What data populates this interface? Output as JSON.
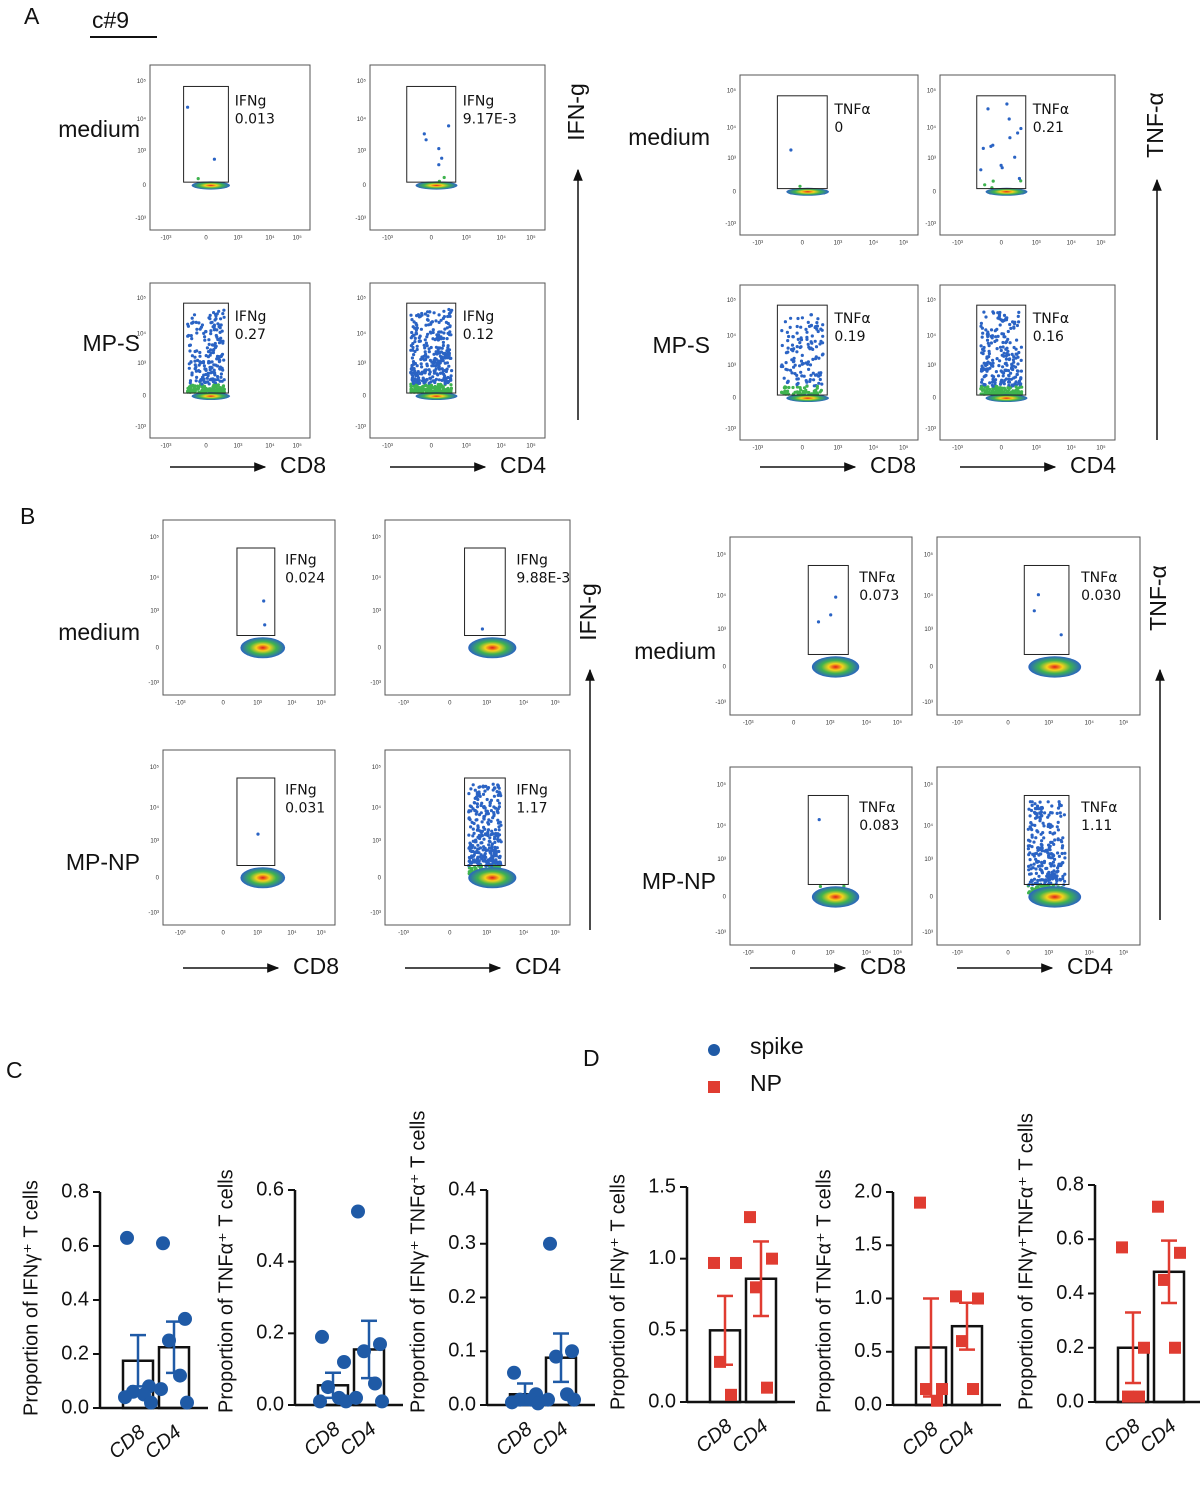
{
  "panels": {
    "A": {
      "label": "A",
      "sample": "c#9",
      "groups": [
        {
          "readout": "IFN-g",
          "columns": [
            "CD8",
            "CD4"
          ],
          "rows": [
            {
              "label": "medium",
              "gates": [
                {
                  "name": "IFNg",
                  "value": "0.013"
                },
                {
                  "name": "IFNg",
                  "value": "9.17E-3"
                }
              ]
            },
            {
              "label": "MP-S",
              "gates": [
                {
                  "name": "IFNg",
                  "value": "0.27"
                },
                {
                  "name": "IFNg",
                  "value": "0.12"
                }
              ]
            }
          ]
        },
        {
          "readout": "TNF-α",
          "columns": [
            "CD8",
            "CD4"
          ],
          "rows": [
            {
              "label": "medium",
              "gates": [
                {
                  "name": "TNFα",
                  "value": "0"
                },
                {
                  "name": "TNFα",
                  "value": "0.21"
                }
              ]
            },
            {
              "label": "MP-S",
              "gates": [
                {
                  "name": "TNFα",
                  "value": "0.19"
                },
                {
                  "name": "TNFα",
                  "value": "0.16"
                }
              ]
            }
          ]
        }
      ]
    },
    "B": {
      "label": "B",
      "groups": [
        {
          "readout": "IFN-g",
          "columns": [
            "CD8",
            "CD4"
          ],
          "rows": [
            {
              "label": "medium",
              "gates": [
                {
                  "name": "IFNg",
                  "value": "0.024"
                },
                {
                  "name": "IFNg",
                  "value": "9.88E-3"
                }
              ]
            },
            {
              "label": "MP-NP",
              "gates": [
                {
                  "name": "IFNg",
                  "value": "0.031"
                },
                {
                  "name": "IFNg",
                  "value": "1.17"
                }
              ]
            }
          ]
        },
        {
          "readout": "TNF-α",
          "columns": [
            "CD8",
            "CD4"
          ],
          "rows": [
            {
              "label": "medium",
              "gates": [
                {
                  "name": "TNFα",
                  "value": "0.073"
                },
                {
                  "name": "TNFα",
                  "value": "0.030"
                }
              ]
            },
            {
              "label": "MP-NP",
              "gates": [
                {
                  "name": "TNFα",
                  "value": "0.083"
                },
                {
                  "name": "TNFα",
                  "value": "1.11"
                }
              ]
            }
          ]
        }
      ]
    },
    "C": {
      "label": "C"
    },
    "D": {
      "label": "D"
    }
  },
  "flow_ticks": [
    "-10³",
    "0",
    "10³",
    "10⁴",
    "10⁵"
  ],
  "legend": [
    {
      "name": "spike",
      "color": "#1f5aa6",
      "marker": "circle"
    },
    {
      "name": "NP",
      "color": "#e03c31",
      "marker": "square"
    }
  ],
  "chart_data": [
    {
      "type": "bar",
      "ylabel": "Proportion of IFNγ⁺ T cells",
      "categories": [
        "CD8",
        "CD4"
      ],
      "values": [
        0.175,
        0.225
      ],
      "errors": [
        0.095,
        0.095
      ],
      "points": [
        [
          0.63,
          0.08,
          0.06,
          0.05,
          0.04,
          0.02
        ],
        [
          0.61,
          0.33,
          0.25,
          0.12,
          0.07,
          0.02
        ]
      ],
      "color": "#1f5aa6",
      "marker": "circle",
      "ylim": [
        0,
        0.8
      ],
      "yticks": [
        {
          "value": 0,
          "label": "0.0"
        },
        {
          "value": 0.2,
          "label": "0.2"
        },
        {
          "value": 0.4,
          "label": "0.4"
        },
        {
          "value": 0.6,
          "label": "0.6"
        },
        {
          "value": 0.8,
          "label": "0.8"
        }
      ]
    },
    {
      "type": "bar",
      "ylabel": "Proportion of TNFα⁺ T cells",
      "categories": [
        "CD8",
        "CD4"
      ],
      "values": [
        0.055,
        0.155
      ],
      "errors": [
        0.035,
        0.08
      ],
      "points": [
        [
          0.19,
          0.12,
          0.05,
          0.02,
          0.01,
          0.01
        ],
        [
          0.54,
          0.17,
          0.15,
          0.06,
          0.02,
          0.01
        ]
      ],
      "color": "#1f5aa6",
      "marker": "circle",
      "ylim": [
        0,
        0.6
      ],
      "yticks": [
        {
          "value": 0,
          "label": "0.0"
        },
        {
          "value": 0.2,
          "label": "0.2"
        },
        {
          "value": 0.4,
          "label": "0.4"
        },
        {
          "value": 0.6,
          "label": "0.6"
        }
      ]
    },
    {
      "type": "bar",
      "ylabel": "Proportion of IFNγ⁺ TNFα⁺ T cells",
      "categories": [
        "CD8",
        "CD4"
      ],
      "values": [
        0.02,
        0.088
      ],
      "errors": [
        0.02,
        0.045
      ],
      "points": [
        [
          0.06,
          0.02,
          0.01,
          0.01,
          0.005,
          0.003
        ],
        [
          0.3,
          0.1,
          0.09,
          0.02,
          0.01,
          0.01
        ]
      ],
      "color": "#1f5aa6",
      "marker": "circle",
      "ylim": [
        0,
        0.4
      ],
      "yticks": [
        {
          "value": 0,
          "label": "0.0"
        },
        {
          "value": 0.1,
          "label": "0.1"
        },
        {
          "value": 0.2,
          "label": "0.2"
        },
        {
          "value": 0.3,
          "label": "0.3"
        },
        {
          "value": 0.4,
          "label": "0.4"
        }
      ]
    },
    {
      "type": "bar",
      "ylabel": "Proportion of IFNγ⁺ T cells",
      "categories": [
        "CD8",
        "CD4"
      ],
      "values": [
        0.5,
        0.86
      ],
      "errors": [
        0.24,
        0.26
      ],
      "points": [
        [
          0.97,
          0.97,
          0.28,
          0.05
        ],
        [
          1.29,
          1.0,
          0.8,
          0.1
        ]
      ],
      "color": "#e03c31",
      "marker": "square",
      "ylim": [
        0,
        1.5
      ],
      "yticks": [
        {
          "value": 0,
          "label": "0.0"
        },
        {
          "value": 0.5,
          "label": "0.5"
        },
        {
          "value": 1,
          "label": "1.0"
        },
        {
          "value": 1.5,
          "label": "1.5"
        }
      ]
    },
    {
      "type": "bar",
      "ylabel": "Proportion of TNFα⁺ T cells",
      "categories": [
        "CD8",
        "CD4"
      ],
      "values": [
        0.54,
        0.74
      ],
      "errors": [
        0.46,
        0.22
      ],
      "points": [
        [
          1.9,
          0.15,
          0.15,
          0.04
        ],
        [
          1.02,
          1.0,
          0.6,
          0.15
        ]
      ],
      "color": "#e03c31",
      "marker": "square",
      "ylim": [
        0,
        2
      ],
      "yticks": [
        {
          "value": 0,
          "label": "0.0"
        },
        {
          "value": 0.5,
          "label": "0.5"
        },
        {
          "value": 1,
          "label": "1.0"
        },
        {
          "value": 1.5,
          "label": "1.5"
        },
        {
          "value": 2,
          "label": "2.0"
        }
      ]
    },
    {
      "type": "bar",
      "ylabel": "Proportion of IFNγ⁺TNFα⁺ T cells",
      "categories": [
        "CD8",
        "CD4"
      ],
      "values": [
        0.2,
        0.48
      ],
      "errors": [
        0.13,
        0.115
      ],
      "points": [
        [
          0.57,
          0.2,
          0.02,
          0.02
        ],
        [
          0.72,
          0.55,
          0.45,
          0.2
        ]
      ],
      "color": "#e03c31",
      "marker": "square",
      "ylim": [
        0,
        0.8
      ],
      "yticks": [
        {
          "value": 0,
          "label": "0.0"
        },
        {
          "value": 0.2,
          "label": "0.2"
        },
        {
          "value": 0.4,
          "label": "0.4"
        },
        {
          "value": 0.6,
          "label": "0.6"
        },
        {
          "value": 0.8,
          "label": "0.8"
        }
      ]
    }
  ]
}
